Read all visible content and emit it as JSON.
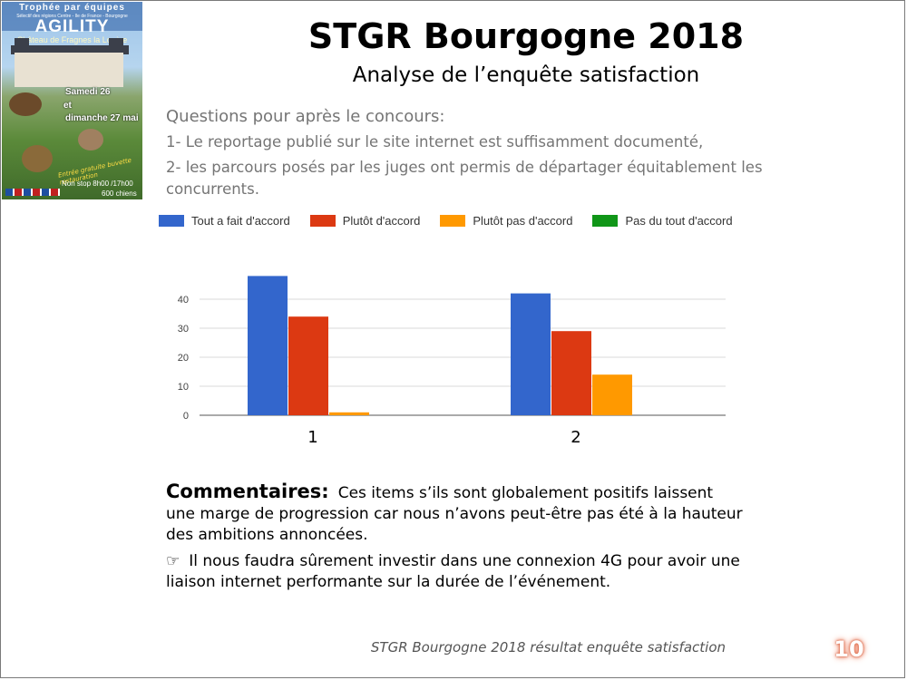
{
  "poster": {
    "line1": "Trophée par équipes",
    "line2": "Sélectif des régions Centre - Ile de France - Bourgogne",
    "line3": "AGILITY",
    "line4": "Château de Fragnes la Loyère",
    "date1": "Samedi 26",
    "date2": "et",
    "date3": "dimanche 27 mai",
    "slogan": "Entrée gratuite buvette restauration",
    "hours": "Non stop 8h00 /17h00",
    "dogs": "600 chiens"
  },
  "title": "STGR Bourgogne 2018",
  "subtitle": "Analyse de l’enquête satisfaction",
  "questions": {
    "heading": "Questions pour après le concours:",
    "items": [
      "1- Le reportage publié sur le site internet est suffisamment documenté,",
      "2- les parcours posés par les juges ont permis de départager équitablement les concurrents."
    ]
  },
  "colors": {
    "blue": "#3366cc",
    "red": "#dc3912",
    "orange": "#ff9900",
    "green": "#109618"
  },
  "chart_data": {
    "type": "bar",
    "categories": [
      "1",
      "2"
    ],
    "series": [
      {
        "name": "Tout a fait d'accord",
        "values": [
          48,
          42
        ],
        "color": "#3366cc"
      },
      {
        "name": "Plutôt d'accord",
        "values": [
          34,
          29
        ],
        "color": "#dc3912"
      },
      {
        "name": "Plutôt pas d'accord",
        "values": [
          1,
          14
        ],
        "color": "#ff9900"
      },
      {
        "name": "Pas du tout d'accord",
        "values": [
          0,
          0
        ],
        "color": "#109618"
      }
    ],
    "yticks": [
      "0",
      "10",
      "20",
      "30",
      "40"
    ],
    "ylim": [
      0,
      50
    ],
    "grid": true,
    "legend": "top"
  },
  "comments": {
    "label": "Commentaires:",
    "text1": "Ces items s’ils sont globalement positifs laissent une marge de progression car nous n’avons peut-être pas été à la hauteur des ambitions annoncées.",
    "icon": "pointing-hand-icon",
    "text2": "Il nous faudra sûrement investir dans une connexion 4G pour avoir une liaison internet performante sur la durée de l’événement."
  },
  "footer": "STGR Bourgogne 2018 résultat enquête satisfaction",
  "page_number": "10"
}
